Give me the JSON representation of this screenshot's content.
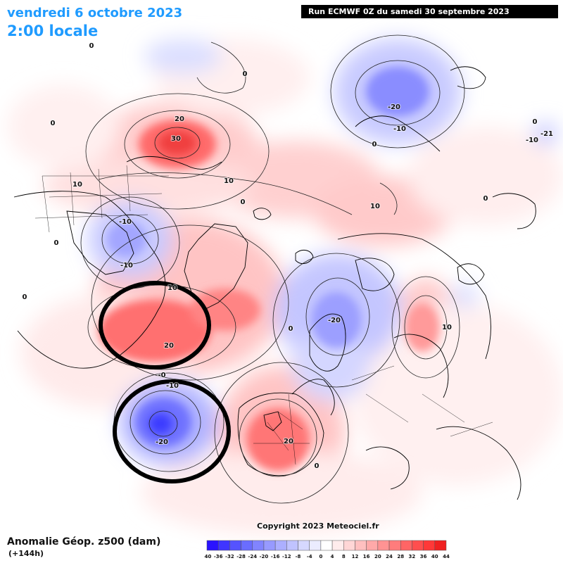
{
  "header": {
    "date": "vendredi 6 octobre 2023",
    "time": "2:00 locale",
    "run": "Run ECMWF 0Z du samedi 30 septembre 2023"
  },
  "footer": {
    "title": "Anomalie Géop. z500 (dam)",
    "lead": "(+144h)",
    "copyright": "Copyright 2023 Meteociel.fr"
  },
  "legend": {
    "ticks": [
      "-40",
      "-36",
      "-32",
      "-28",
      "-24",
      "-20",
      "-16",
      "-12",
      "-8",
      "-4",
      "0",
      "4",
      "8",
      "12",
      "16",
      "20",
      "24",
      "28",
      "32",
      "36",
      "40",
      "44"
    ],
    "colors": [
      "#2a13ff",
      "#3f35ff",
      "#5553ff",
      "#6a6dff",
      "#8184ff",
      "#979aff",
      "#acafff",
      "#c0c3ff",
      "#d6d8ff",
      "#ebecff",
      "#ffffff",
      "#ffecec",
      "#ffd6d6",
      "#ffc0c0",
      "#ffa9a9",
      "#ff9393",
      "#ff7c7c",
      "#ff6565",
      "#ff4e4e",
      "#ff3838",
      "#f02020"
    ]
  },
  "contour_labels": [
    {
      "text": "0"
    },
    {
      "text": "0"
    },
    {
      "text": "0"
    },
    {
      "text": "0"
    },
    {
      "text": "0"
    },
    {
      "text": "20"
    },
    {
      "text": "30"
    },
    {
      "text": "10"
    },
    {
      "text": "10"
    },
    {
      "text": "-20"
    },
    {
      "text": "-10"
    },
    {
      "text": "0"
    },
    {
      "text": "10"
    },
    {
      "text": "-21"
    },
    {
      "text": "-10"
    },
    {
      "text": "0"
    },
    {
      "text": "-10"
    },
    {
      "text": "-10"
    },
    {
      "text": "0"
    },
    {
      "text": "0"
    },
    {
      "text": "10"
    },
    {
      "text": "20"
    },
    {
      "text": "-20"
    },
    {
      "text": "0"
    },
    {
      "text": "10"
    },
    {
      "text": "-0"
    },
    {
      "text": "-10"
    },
    {
      "text": "-20"
    },
    {
      "text": "20"
    },
    {
      "text": "0"
    }
  ]
}
